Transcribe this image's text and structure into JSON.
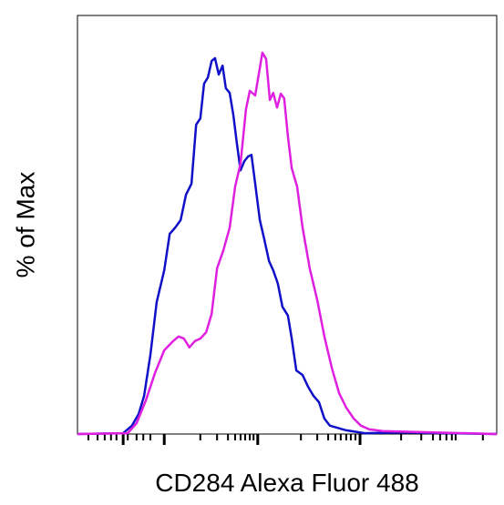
{
  "chart_data": {
    "type": "line",
    "x_label": "CD284 Alexa Fluor 488",
    "y_label": "% of Max",
    "xlim": [
      0,
      100
    ],
    "ylim": [
      0,
      100
    ],
    "xticks": [
      10.9,
      20.7,
      43.0,
      67.4
    ],
    "xminorticks": [
      2.6,
      4.8,
      6.5,
      8.0,
      9.3,
      12.0,
      14.1,
      15.7,
      17.4,
      33.3,
      35.9,
      37.6,
      38.9,
      40.0,
      41.1,
      42.0,
      29.3,
      53.3,
      57.2,
      59.8,
      61.5,
      62.8,
      64.1,
      65.2,
      66.3,
      77.2,
      82.0,
      84.8,
      86.5,
      88.0,
      89.3,
      90.2,
      96.7
    ],
    "series": [
      {
        "color": "#1010c8",
        "x": [
          0,
          10.9,
          13.0,
          14.6,
          15.9,
          17.4,
          18.9,
          20.7,
          22.0,
          23.3,
          24.6,
          25.9,
          27.2,
          28.3,
          29.3,
          30.2,
          31.1,
          32.0,
          32.8,
          33.7,
          34.6,
          35.4,
          36.3,
          37.2,
          38.0,
          38.9,
          39.8,
          40.7,
          41.5,
          42.4,
          43.5,
          44.6,
          45.7,
          46.7,
          47.8,
          48.9,
          50.2,
          51.1,
          52.2,
          53.7,
          55.0,
          56.3,
          57.6,
          58.9,
          60.2,
          64.1,
          68.5,
          77.2,
          100
        ],
        "values": [
          0,
          0.2,
          2.0,
          4.8,
          9.1,
          18.9,
          31.5,
          39.1,
          47.8,
          49.3,
          51.1,
          57.2,
          59.8,
          73.9,
          75.4,
          83.7,
          85.2,
          89.1,
          89.8,
          85.9,
          88.0,
          82.6,
          81.5,
          76.1,
          69.6,
          63.0,
          65.2,
          66.3,
          66.7,
          59.8,
          51.1,
          46.3,
          41.3,
          39.1,
          35.9,
          30.4,
          28.3,
          22.8,
          15.2,
          14.1,
          11.3,
          9.1,
          7.6,
          3.7,
          2.0,
          0.9,
          0.2,
          0.4,
          0
        ]
      },
      {
        "color": "#e020e0",
        "x": [
          0,
          12.0,
          14.1,
          16.3,
          18.5,
          20.7,
          22.8,
          24.1,
          25.4,
          26.7,
          28.0,
          29.3,
          30.7,
          32.0,
          33.3,
          34.8,
          36.3,
          37.6,
          38.9,
          40.2,
          41.1,
          42.4,
          43.3,
          44.1,
          45.0,
          45.9,
          46.7,
          47.6,
          48.5,
          49.3,
          50.2,
          51.1,
          52.4,
          53.7,
          55.4,
          57.2,
          58.9,
          60.7,
          62.4,
          64.1,
          65.9,
          67.6,
          69.6,
          72.8,
          100
        ],
        "values": [
          0,
          0.2,
          2.6,
          8.0,
          14.6,
          20.0,
          22.2,
          23.3,
          22.8,
          20.7,
          22.2,
          22.8,
          24.3,
          28.7,
          39.6,
          43.9,
          49.3,
          59.1,
          64.6,
          77.6,
          82.0,
          80.9,
          86.3,
          91.1,
          89.6,
          79.8,
          81.5,
          78.0,
          81.3,
          80.2,
          71.1,
          63.5,
          59.1,
          49.3,
          39.6,
          32.0,
          23.3,
          15.7,
          9.8,
          6.3,
          3.7,
          2.0,
          1.1,
          0.7,
          0
        ]
      }
    ]
  }
}
